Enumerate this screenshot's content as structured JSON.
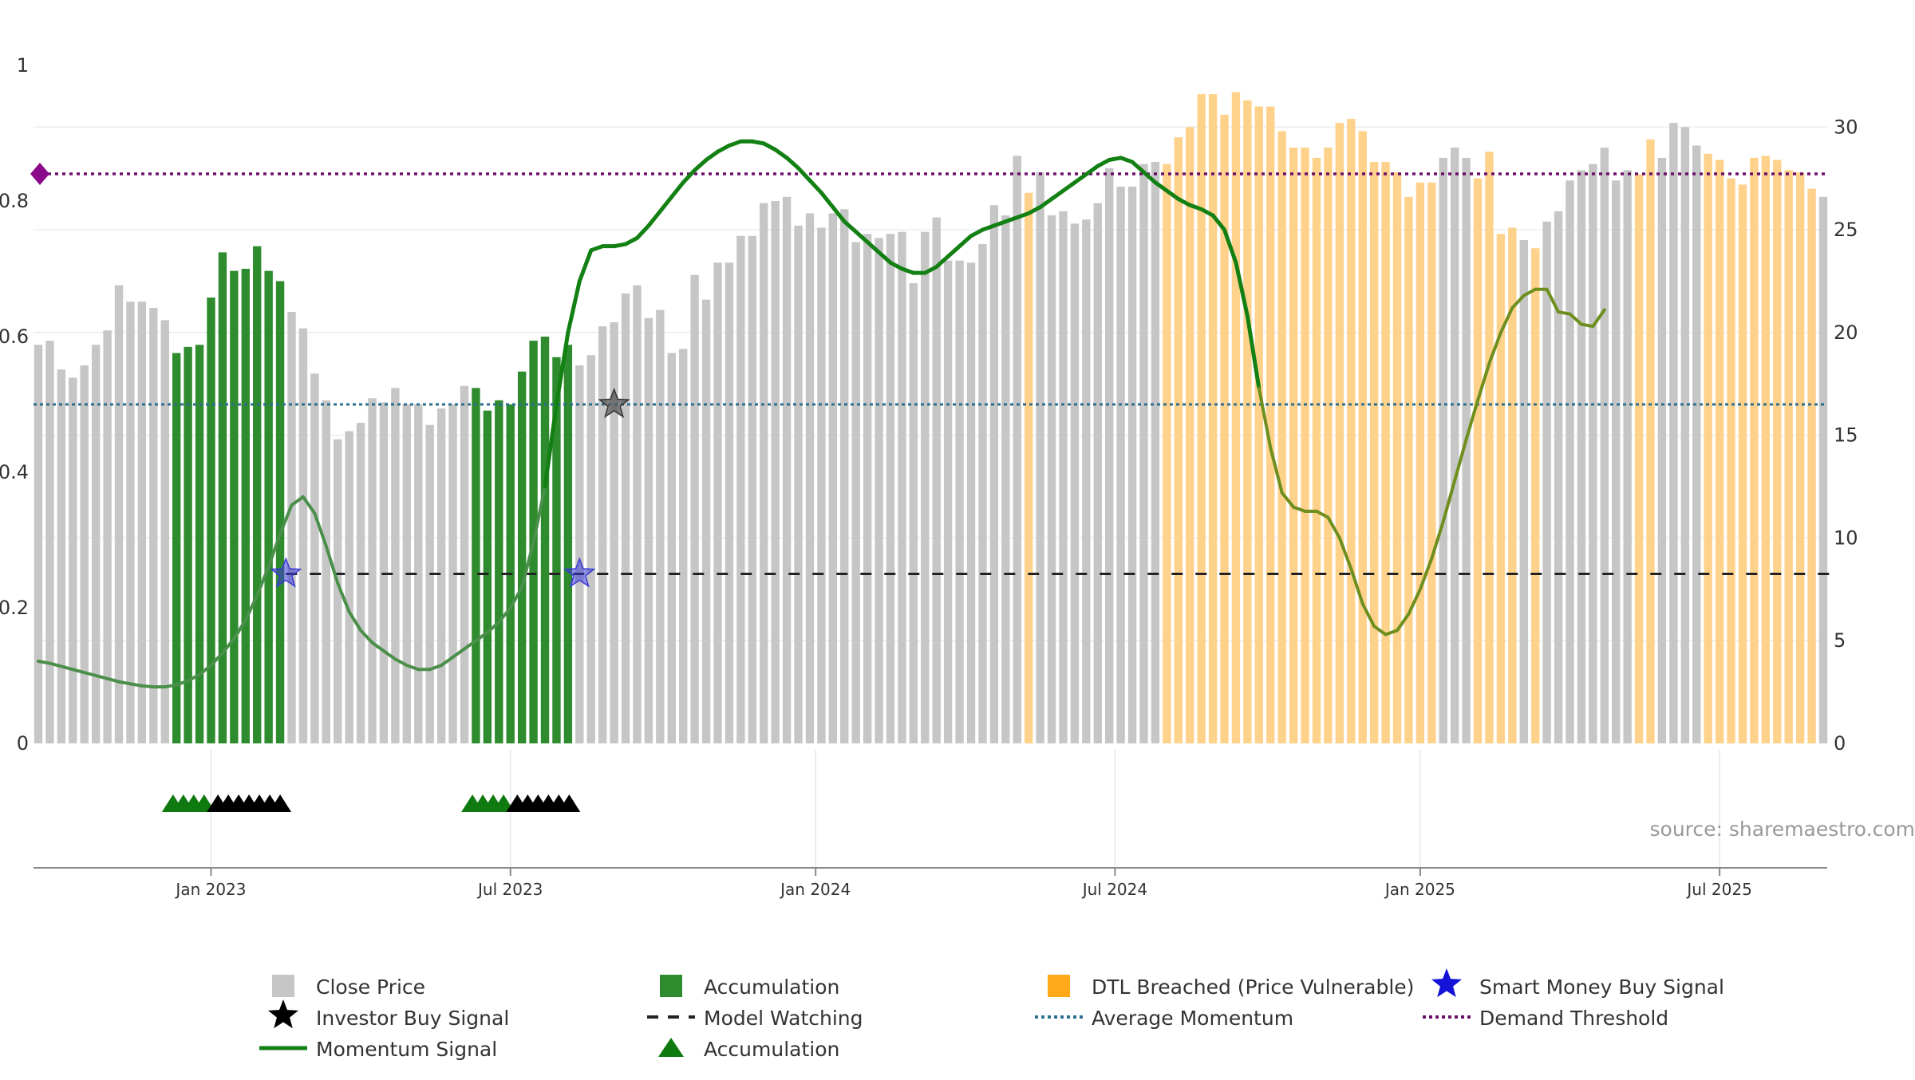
{
  "chart_data": {
    "type": "bar",
    "left_axis": {
      "range": [
        0,
        1
      ],
      "ticks": [
        "0",
        "0.2",
        "0.4",
        "0.6",
        "0.8",
        "1"
      ]
    },
    "right_axis": {
      "range": [
        0,
        33
      ],
      "ticks": [
        "0",
        "5",
        "10",
        "15",
        "20",
        "25",
        "30"
      ]
    },
    "x_ticks": [
      {
        "label": "Jan 2023",
        "week": 15
      },
      {
        "label": "Jul 2023",
        "week": 41
      },
      {
        "label": "Jan 2024",
        "week": 67.5
      },
      {
        "label": "Jul 2024",
        "week": 93.5
      },
      {
        "label": "Jan 2025",
        "week": 120
      },
      {
        "label": "Jul 2025",
        "week": 146
      }
    ],
    "price_states": "GGGGGGGGGGGGAAAAAAAAAAGGGGGGGGGGGGGGGGAAAAAAAAAGGGGGGGGGGGGGGGGGGGGGGGGGGGGGGGGGGGGGGGDGGGGGGGGGGGDDDDDDDDDDDDDDDDDDDDDDDDGGGDDDDGDGGGGGGGGDDGGGGDDDDDDDDDDGDDDDGGGG",
    "close_price": [
      19.4,
      19.6,
      18.2,
      17.8,
      18.4,
      19.4,
      20.1,
      22.3,
      21.5,
      21.5,
      21.2,
      20.6,
      19.0,
      19.3,
      19.4,
      21.7,
      23.9,
      23.0,
      23.1,
      24.2,
      23.0,
      22.5,
      21.0,
      20.2,
      18.0,
      16.7,
      14.8,
      15.2,
      15.6,
      16.8,
      16.6,
      17.3,
      16.5,
      16.5,
      15.5,
      16.3,
      16.5,
      17.4,
      17.3,
      16.2,
      16.7,
      16.5,
      18.1,
      19.6,
      19.8,
      18.8,
      19.4,
      18.4,
      18.9,
      20.3,
      20.5,
      21.9,
      22.3,
      20.7,
      21.1,
      19.0,
      19.2,
      22.8,
      21.6,
      23.4,
      23.4,
      24.7,
      24.7,
      26.3,
      26.4,
      26.6,
      25.2,
      25.8,
      25.1,
      25.8,
      26.0,
      24.4,
      24.8,
      24.6,
      24.8,
      24.9,
      22.4,
      24.9,
      25.6,
      23.5,
      23.5,
      23.4,
      24.3,
      26.2,
      25.7,
      28.6,
      26.8,
      27.8,
      25.7,
      25.9,
      25.3,
      25.5,
      26.3,
      28.0,
      27.1,
      27.1,
      28.2,
      28.3,
      28.2,
      29.5,
      30.0,
      31.6,
      31.6,
      30.6,
      31.7,
      31.3,
      31.0,
      31.0,
      29.8,
      29.0,
      29.0,
      28.5,
      29.0,
      30.2,
      30.4,
      29.8,
      28.3,
      28.3,
      27.8,
      26.6,
      27.3,
      27.3,
      28.5,
      29.0,
      28.5,
      27.5,
      28.8,
      24.8,
      25.1,
      24.5,
      24.1,
      25.4,
      25.9,
      27.4,
      27.9,
      28.2,
      29.0,
      27.4,
      27.9,
      27.7,
      29.4,
      28.5,
      30.2,
      30.0,
      29.1,
      28.7,
      28.4,
      27.5,
      27.2,
      28.5,
      28.6,
      28.4,
      27.9,
      27.8,
      27.0,
      26.6
    ],
    "momentum_signal": [
      4.0,
      3.9,
      3.75,
      3.6,
      3.45,
      3.3,
      3.15,
      3.0,
      2.9,
      2.8,
      2.75,
      2.75,
      2.85,
      3.05,
      3.35,
      3.8,
      4.4,
      5.1,
      6.0,
      7.2,
      8.6,
      10.2,
      11.6,
      12.0,
      11.2,
      9.6,
      7.8,
      6.4,
      5.5,
      4.9,
      4.5,
      4.1,
      3.8,
      3.6,
      3.6,
      3.8,
      4.2,
      4.6,
      5.0,
      5.4,
      5.9,
      6.6,
      7.6,
      9.8,
      12.5,
      16.5,
      20.0,
      22.5,
      24.0,
      24.2,
      24.2,
      24.3,
      24.6,
      25.2,
      25.9,
      26.6,
      27.3,
      27.9,
      28.4,
      28.8,
      29.1,
      29.3,
      29.3,
      29.2,
      28.9,
      28.5,
      28.0,
      27.4,
      26.8,
      26.1,
      25.4,
      24.9,
      24.4,
      23.9,
      23.4,
      23.1,
      22.9,
      22.9,
      23.2,
      23.7,
      24.2,
      24.7,
      25.0,
      25.2,
      25.4,
      25.6,
      25.8,
      26.1,
      26.5,
      26.9,
      27.3,
      27.7,
      28.1,
      28.4,
      28.5,
      28.3,
      27.8,
      27.3,
      26.9,
      26.5,
      26.2,
      26.0,
      25.7,
      25.0,
      23.4,
      20.8,
      17.3,
      14.4,
      12.2,
      11.5,
      11.3,
      11.3,
      11.0,
      10.0,
      8.5,
      6.8,
      5.7,
      5.3,
      5.5,
      6.3,
      7.5,
      9.0,
      10.8,
      12.8,
      14.8,
      16.7,
      18.5,
      20.0,
      21.2,
      21.8,
      22.1,
      22.1,
      21.0,
      20.9,
      20.4,
      20.3,
      21.1
    ],
    "average_momentum": 0.5,
    "demand_threshold": 0.84,
    "model_watching_level": 0.25,
    "model_watching_range": [
      21.5,
      156
    ],
    "smart_money_buy_signals": [
      {
        "week": 21.5,
        "value": 0.25
      },
      {
        "week": 47,
        "value": 0.25
      }
    ],
    "investor_buy_signals": [
      {
        "week": 50,
        "value": 0.5
      }
    ],
    "accumulation_markers": [
      {
        "week": 11.7,
        "state": "green"
      },
      {
        "week": 12.6,
        "state": "green"
      },
      {
        "week": 13.5,
        "state": "green"
      },
      {
        "week": 14.4,
        "state": "green"
      },
      {
        "week": 15.6,
        "state": "black"
      },
      {
        "week": 16.5,
        "state": "black"
      },
      {
        "week": 17.4,
        "state": "black"
      },
      {
        "week": 18.3,
        "state": "black"
      },
      {
        "week": 19.2,
        "state": "black"
      },
      {
        "week": 20.1,
        "state": "black"
      },
      {
        "week": 21.0,
        "state": "black"
      },
      {
        "week": 37.7,
        "state": "green"
      },
      {
        "week": 38.6,
        "state": "green"
      },
      {
        "week": 39.5,
        "state": "green"
      },
      {
        "week": 40.4,
        "state": "green"
      },
      {
        "week": 41.6,
        "state": "black"
      },
      {
        "week": 42.5,
        "state": "black"
      },
      {
        "week": 43.4,
        "state": "black"
      },
      {
        "week": 44.3,
        "state": "black"
      },
      {
        "week": 45.2,
        "state": "black"
      },
      {
        "week": 46.1,
        "state": "black"
      }
    ],
    "source_note": "source: sharemaestro.com",
    "legend": {
      "close_price": "Close Price",
      "accumulation_bar": "Accumulation",
      "dtl_breached": "DTL Breached (Price Vulnerable)",
      "smart_money": "Smart Money Buy Signal",
      "investor_buy": "Investor Buy Signal",
      "model_watching": "Model Watching",
      "average_momentum": "Average Momentum",
      "demand_threshold": "Demand Threshold",
      "momentum_signal": "Momentum Signal",
      "accumulation_marker": "Accumulation"
    },
    "colors": {
      "close_price": "#c6c6c6",
      "accumulation": "#2e8b2e",
      "dtl_breached": "#ffd28c",
      "momentum_strong": "#128012",
      "momentum_muted": "#4a8f4a",
      "momentum_olive": "#6e8f1e",
      "average_momentum": "#2e6f8f",
      "demand_threshold": "#6b0f6b",
      "model_watching": "#222222",
      "smart_money": "#3b3bd6",
      "investor_buy": "#555555",
      "marker_green": "#0f7a0f",
      "marker_black": "#000000"
    }
  }
}
